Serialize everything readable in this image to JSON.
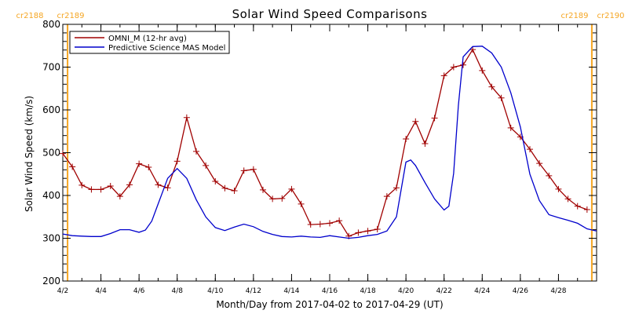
{
  "chart_data": {
    "type": "line",
    "title": "Solar Wind Speed Comparisons",
    "xlabel": "Month/Day from 2017-04-02 to 2017-04-29 (UT)",
    "ylabel": "Solar Wind Speed (km/s)",
    "xlim": [
      "2017-04-02",
      "2017-04-30"
    ],
    "ylim": [
      200,
      800
    ],
    "y_ticks": [
      200,
      300,
      400,
      500,
      600,
      700,
      800
    ],
    "x_ticks": [
      {
        "date": "2017-04-02",
        "label": "4/2"
      },
      {
        "date": "2017-04-04",
        "label": "4/4"
      },
      {
        "date": "2017-04-06",
        "label": "4/6"
      },
      {
        "date": "2017-04-08",
        "label": "4/8"
      },
      {
        "date": "2017-04-10",
        "label": "4/10"
      },
      {
        "date": "2017-04-12",
        "label": "4/12"
      },
      {
        "date": "2017-04-14",
        "label": "4/14"
      },
      {
        "date": "2017-04-16",
        "label": "4/16"
      },
      {
        "date": "2017-04-18",
        "label": "4/18"
      },
      {
        "date": "2017-04-20",
        "label": "4/20"
      },
      {
        "date": "2017-04-22",
        "label": "4/22"
      },
      {
        "date": "2017-04-24",
        "label": "4/24"
      },
      {
        "date": "2017-04-26",
        "label": "4/26"
      },
      {
        "date": "2017-04-28",
        "label": "4/28"
      }
    ],
    "grid": false,
    "legend_position": "top-left",
    "carrington_markers": [
      {
        "date": "2017-04-02T06:00",
        "left_label": "cr2188",
        "right_label": "cr2189",
        "color": "#f5a623"
      },
      {
        "date": "2017-04-29T18:00",
        "left_label": "cr2189",
        "right_label": "cr2190",
        "color": "#f5a623"
      }
    ],
    "series": [
      {
        "name": "OMNI_M (12-hr avg)",
        "color": "#a00000",
        "marker": "plus",
        "points": [
          [
            "2017-04-02T00:00",
            498
          ],
          [
            "2017-04-02T12:00",
            467
          ],
          [
            "2017-04-03T00:00",
            424
          ],
          [
            "2017-04-03T12:00",
            414
          ],
          [
            "2017-04-04T00:00",
            414
          ],
          [
            "2017-04-04T12:00",
            422
          ],
          [
            "2017-04-05T00:00",
            398
          ],
          [
            "2017-04-05T12:00",
            425
          ],
          [
            "2017-04-06T00:00",
            474
          ],
          [
            "2017-04-06T12:00",
            466
          ],
          [
            "2017-04-07T00:00",
            425
          ],
          [
            "2017-04-07T12:00",
            418
          ],
          [
            "2017-04-08T00:00",
            480
          ],
          [
            "2017-04-08T12:00",
            582
          ],
          [
            "2017-04-09T00:00",
            503
          ],
          [
            "2017-04-09T12:00",
            470
          ],
          [
            "2017-04-10T00:00",
            433
          ],
          [
            "2017-04-10T12:00",
            417
          ],
          [
            "2017-04-11T00:00",
            411
          ],
          [
            "2017-04-11T12:00",
            458
          ],
          [
            "2017-04-12T00:00",
            461
          ],
          [
            "2017-04-12T12:00",
            413
          ],
          [
            "2017-04-13T00:00",
            392
          ],
          [
            "2017-04-13T12:00",
            393
          ],
          [
            "2017-04-14T00:00",
            415
          ],
          [
            "2017-04-14T12:00",
            380
          ],
          [
            "2017-04-15T00:00",
            332
          ],
          [
            "2017-04-15T12:00",
            333
          ],
          [
            "2017-04-16T00:00",
            335
          ],
          [
            "2017-04-16T12:00",
            341
          ],
          [
            "2017-04-17T00:00",
            305
          ],
          [
            "2017-04-17T12:00",
            313
          ],
          [
            "2017-04-18T00:00",
            317
          ],
          [
            "2017-04-18T12:00",
            321
          ],
          [
            "2017-04-19T00:00",
            398
          ],
          [
            "2017-04-19T12:00",
            418
          ],
          [
            "2017-04-20T00:00",
            532
          ],
          [
            "2017-04-20T12:00",
            573
          ],
          [
            "2017-04-21T00:00",
            521
          ],
          [
            "2017-04-21T12:00",
            581
          ],
          [
            "2017-04-22T00:00",
            680
          ],
          [
            "2017-04-22T12:00",
            700
          ],
          [
            "2017-04-23T00:00",
            705
          ],
          [
            "2017-04-23T12:00",
            741
          ],
          [
            "2017-04-24T00:00",
            692
          ],
          [
            "2017-04-24T12:00",
            654
          ],
          [
            "2017-04-25T00:00",
            628
          ],
          [
            "2017-04-25T12:00",
            558
          ],
          [
            "2017-04-26T00:00",
            537
          ],
          [
            "2017-04-26T12:00",
            508
          ],
          [
            "2017-04-27T00:00",
            475
          ],
          [
            "2017-04-27T12:00",
            446
          ],
          [
            "2017-04-28T00:00",
            415
          ],
          [
            "2017-04-28T12:00",
            392
          ],
          [
            "2017-04-29T00:00",
            375
          ],
          [
            "2017-04-29T12:00",
            367
          ]
        ]
      },
      {
        "name": "Predictive Science MAS Model",
        "color": "#0000cc",
        "marker": "none",
        "points": [
          [
            "2017-04-02T00:00",
            310
          ],
          [
            "2017-04-02T12:00",
            306
          ],
          [
            "2017-04-03T00:00",
            305
          ],
          [
            "2017-04-03T12:00",
            304
          ],
          [
            "2017-04-04T00:00",
            304
          ],
          [
            "2017-04-04T12:00",
            311
          ],
          [
            "2017-04-05T00:00",
            320
          ],
          [
            "2017-04-05T12:00",
            320
          ],
          [
            "2017-04-06T00:00",
            314
          ],
          [
            "2017-04-06T08:00",
            319
          ],
          [
            "2017-04-06T16:00",
            340
          ],
          [
            "2017-04-07T00:00",
            380
          ],
          [
            "2017-04-07T12:00",
            440
          ],
          [
            "2017-04-08T00:00",
            463
          ],
          [
            "2017-04-08T12:00",
            440
          ],
          [
            "2017-04-09T00:00",
            390
          ],
          [
            "2017-04-09T12:00",
            350
          ],
          [
            "2017-04-10T00:00",
            325
          ],
          [
            "2017-04-10T12:00",
            318
          ],
          [
            "2017-04-11T00:00",
            326
          ],
          [
            "2017-04-11T12:00",
            333
          ],
          [
            "2017-04-12T00:00",
            327
          ],
          [
            "2017-04-12T12:00",
            316
          ],
          [
            "2017-04-13T00:00",
            309
          ],
          [
            "2017-04-13T12:00",
            304
          ],
          [
            "2017-04-14T00:00",
            303
          ],
          [
            "2017-04-14T12:00",
            305
          ],
          [
            "2017-04-15T00:00",
            303
          ],
          [
            "2017-04-15T12:00",
            302
          ],
          [
            "2017-04-16T00:00",
            306
          ],
          [
            "2017-04-16T12:00",
            303
          ],
          [
            "2017-04-17T00:00",
            300
          ],
          [
            "2017-04-17T12:00",
            302
          ],
          [
            "2017-04-18T00:00",
            306
          ],
          [
            "2017-04-18T12:00",
            309
          ],
          [
            "2017-04-19T00:00",
            317
          ],
          [
            "2017-04-19T12:00",
            350
          ],
          [
            "2017-04-20T00:00",
            478
          ],
          [
            "2017-04-20T06:00",
            483
          ],
          [
            "2017-04-20T12:00",
            470
          ],
          [
            "2017-04-21T00:00",
            430
          ],
          [
            "2017-04-21T12:00",
            392
          ],
          [
            "2017-04-22T00:00",
            366
          ],
          [
            "2017-04-22T06:00",
            375
          ],
          [
            "2017-04-22T12:00",
            452
          ],
          [
            "2017-04-22T18:00",
            610
          ],
          [
            "2017-04-23T00:00",
            724
          ],
          [
            "2017-04-23T12:00",
            748
          ],
          [
            "2017-04-24T00:00",
            749
          ],
          [
            "2017-04-24T12:00",
            733
          ],
          [
            "2017-04-25T00:00",
            700
          ],
          [
            "2017-04-25T12:00",
            640
          ],
          [
            "2017-04-26T00:00",
            560
          ],
          [
            "2017-04-26T12:00",
            450
          ],
          [
            "2017-04-27T00:00",
            388
          ],
          [
            "2017-04-27T12:00",
            355
          ],
          [
            "2017-04-28T00:00",
            348
          ],
          [
            "2017-04-28T12:00",
            342
          ],
          [
            "2017-04-29T00:00",
            335
          ],
          [
            "2017-04-29T12:00",
            322
          ],
          [
            "2017-04-30T00:00",
            317
          ]
        ]
      }
    ]
  }
}
